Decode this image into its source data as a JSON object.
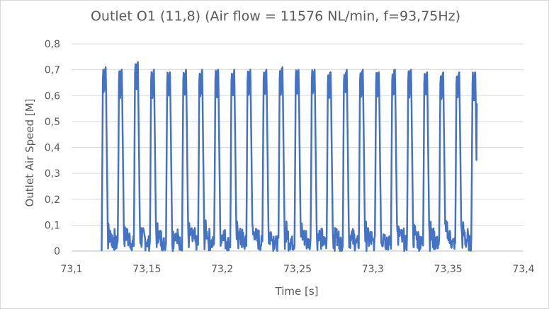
{
  "chart_data": {
    "type": "line",
    "title": "Outlet O1 (11,8) (Air flow = 11576 NL/min, f=93,75Hz)",
    "xlabel": "Time [s]",
    "ylabel": "Outlet Air Speed [M]",
    "xlim": [
      73.1,
      73.4
    ],
    "ylim": [
      0,
      0.8
    ],
    "x_ticks": [
      "73,1",
      "73,15",
      "73,2",
      "73,25",
      "73,3",
      "73,35",
      "73,4"
    ],
    "y_ticks": [
      "0",
      "0,1",
      "0,2",
      "0,3",
      "0,4",
      "0,5",
      "0,6",
      "0,7",
      "0,8"
    ],
    "grid": "horizontal",
    "series_color": "#4472c4",
    "series": [
      {
        "x_start": 73.12,
        "x_end": 73.369,
        "frequency_hz": 93.75,
        "peaks": [
          0.71,
          0.7,
          0.73,
          0.7,
          0.69,
          0.7,
          0.7,
          0.7,
          0.7,
          0.7,
          0.7,
          0.71,
          0.7,
          0.7,
          0.69,
          0.7,
          0.7,
          0.69,
          0.7,
          0.7,
          0.69,
          0.69,
          0.69
        ],
        "end_value": 0.57
      }
    ]
  }
}
